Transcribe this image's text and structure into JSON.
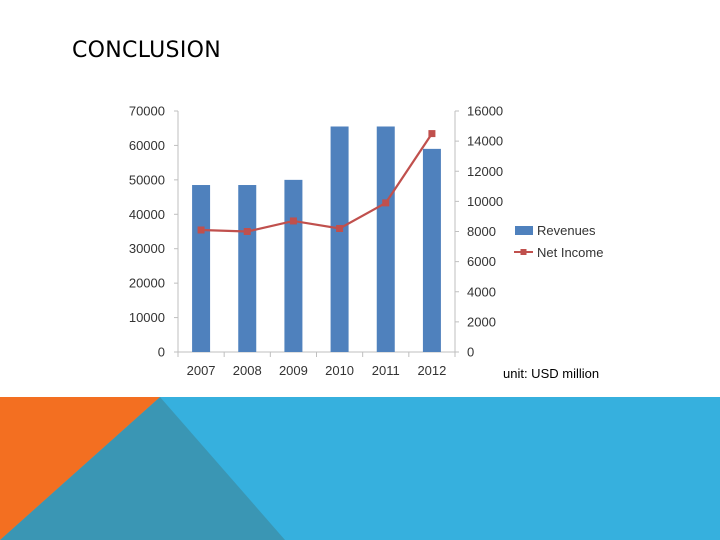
{
  "slide": {
    "title": "CONCLUSION",
    "unit_note": "unit: USD million"
  },
  "colors": {
    "bar": "#4f81bd",
    "line": "#c0504d",
    "axis": "#bfbfbf",
    "deco_orange": "#f36f21",
    "deco_teal": "#3a96b4",
    "deco_blue": "#36b0de"
  },
  "chart_data": {
    "type": "bar",
    "categories": [
      "2007",
      "2008",
      "2009",
      "2010",
      "2011",
      "2012"
    ],
    "series": [
      {
        "name": "Revenues",
        "type": "bar",
        "axis": "left",
        "values": [
          48500,
          48500,
          50000,
          65500,
          65500,
          59000
        ]
      },
      {
        "name": "Net Income",
        "type": "line",
        "axis": "right",
        "values": [
          8100,
          8000,
          8700,
          8200,
          9900,
          14500
        ]
      }
    ],
    "y_left": {
      "min": 0,
      "max": 70000,
      "ticks": [
        0,
        10000,
        20000,
        30000,
        40000,
        50000,
        60000,
        70000
      ]
    },
    "y_right": {
      "min": 0,
      "max": 16000,
      "ticks": [
        0,
        2000,
        4000,
        6000,
        8000,
        10000,
        12000,
        14000,
        16000
      ]
    },
    "legend": "right",
    "grid": false
  }
}
